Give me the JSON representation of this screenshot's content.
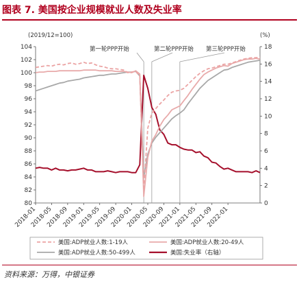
{
  "header": {
    "title": "图表 7. 美国按企业规模就业人数及失业率"
  },
  "footer": {
    "source": "资料来源：万得，中银证券"
  },
  "chart_data": {
    "type": "line",
    "left_axis_label": "(2019/12=100)",
    "right_axis_label": "(%)",
    "left_ylim": [
      80,
      104
    ],
    "left_yticks": [
      80,
      82,
      84,
      86,
      88,
      90,
      92,
      94,
      96,
      98,
      100,
      102,
      104
    ],
    "right_ylim": [
      0,
      18
    ],
    "right_yticks": [
      0,
      2,
      4,
      6,
      8,
      10,
      12,
      14,
      16,
      18
    ],
    "xlim": [
      "2018-01",
      "2022-09"
    ],
    "x_ticks": [
      "2018-01",
      "2018-05",
      "2018-09",
      "2019-01",
      "2019-05",
      "2019-09",
      "2020-01",
      "2020-05",
      "2020-09",
      "2021-01",
      "2021-05",
      "2021-09",
      "2022-01"
    ],
    "grid": false,
    "legend_position": "bottom",
    "annotations": [
      {
        "text": "第一轮PPP开始",
        "x": "2020-04"
      },
      {
        "text": "第二轮PPP开始",
        "x": "2020-06"
      },
      {
        "text": "第三轮PPP开始",
        "x": "2021-01"
      }
    ],
    "x": [
      "2018-01",
      "2018-02",
      "2018-03",
      "2018-04",
      "2018-05",
      "2018-06",
      "2018-07",
      "2018-08",
      "2018-09",
      "2018-10",
      "2018-11",
      "2018-12",
      "2019-01",
      "2019-02",
      "2019-03",
      "2019-04",
      "2019-05",
      "2019-06",
      "2019-07",
      "2019-08",
      "2019-09",
      "2019-10",
      "2019-11",
      "2019-12",
      "2020-01",
      "2020-02",
      "2020-03",
      "2020-04",
      "2020-05",
      "2020-06",
      "2020-07",
      "2020-08",
      "2020-09",
      "2020-10",
      "2020-11",
      "2020-12",
      "2021-01",
      "2021-02",
      "2021-03",
      "2021-04",
      "2021-05",
      "2021-06",
      "2021-07",
      "2021-08",
      "2021-09",
      "2021-10",
      "2021-11",
      "2021-12",
      "2022-01",
      "2022-02",
      "2022-03",
      "2022-04",
      "2022-05",
      "2022-06",
      "2022-07",
      "2022-08",
      "2022-09"
    ],
    "series": [
      {
        "name": "美国:ADP就业人数:1-19人",
        "axis": "left",
        "color": "#eba3a3",
        "style": "dashed",
        "values": [
          100.8,
          100.9,
          101.0,
          101.1,
          101.0,
          101.2,
          101.3,
          101.2,
          101.4,
          101.5,
          101.3,
          101.4,
          101.6,
          101.4,
          101.5,
          101.2,
          101.0,
          100.9,
          100.7,
          100.6,
          100.6,
          100.5,
          100.4,
          100.0,
          100.1,
          100.2,
          99.5,
          82.0,
          91.5,
          93.8,
          94.5,
          95.2,
          95.8,
          96.5,
          97.0,
          97.2,
          97.3,
          97.6,
          98.2,
          98.8,
          99.4,
          99.9,
          100.3,
          100.6,
          100.7,
          100.9,
          101.1,
          101.3,
          101.3,
          101.5,
          101.7,
          101.9,
          102.1,
          102.2,
          102.3,
          102.3,
          102.4
        ]
      },
      {
        "name": "美国:ADP就业人数:20-49人",
        "axis": "left",
        "color": "#e8aaaa",
        "style": "solid",
        "values": [
          100.0,
          100.1,
          100.1,
          100.2,
          100.2,
          100.2,
          100.3,
          100.3,
          100.3,
          100.3,
          100.3,
          100.3,
          100.4,
          100.4,
          100.4,
          100.4,
          100.3,
          100.3,
          100.3,
          100.3,
          100.2,
          100.2,
          100.2,
          100.1,
          100.0,
          100.3,
          99.8,
          81.0,
          87.0,
          89.5,
          90.5,
          91.8,
          92.8,
          93.5,
          94.3,
          94.6,
          94.9,
          95.7,
          96.5,
          97.4,
          98.2,
          99.0,
          99.7,
          100.1,
          100.4,
          100.7,
          100.9,
          101.1,
          101.0,
          101.4,
          101.6,
          101.8,
          102.0,
          102.1,
          102.1,
          102.2,
          102.1
        ]
      },
      {
        "name": "美国:ADP就业人数:50-499人",
        "axis": "left",
        "color": "#a8a8a8",
        "style": "solid",
        "values": [
          97.2,
          97.4,
          97.6,
          97.8,
          98.0,
          98.2,
          98.4,
          98.5,
          98.7,
          98.8,
          98.9,
          99.0,
          99.2,
          99.3,
          99.4,
          99.5,
          99.6,
          99.6,
          99.7,
          99.8,
          99.8,
          99.9,
          100.0,
          100.1,
          100.1,
          100.2,
          99.5,
          84.0,
          87.5,
          89.2,
          90.1,
          90.8,
          91.5,
          92.2,
          92.9,
          93.4,
          93.8,
          94.3,
          95.2,
          96.0,
          96.8,
          97.6,
          98.2,
          98.8,
          99.2,
          99.6,
          100.0,
          100.4,
          100.5,
          100.8,
          101.0,
          101.2,
          101.4,
          101.6,
          101.7,
          101.8,
          101.9
        ]
      },
      {
        "name": "美国:失业率（右轴）",
        "axis": "right",
        "color": "#a50f2b",
        "style": "solid",
        "values": [
          4.0,
          4.1,
          4.0,
          4.0,
          3.8,
          4.0,
          3.8,
          3.8,
          3.7,
          3.8,
          3.8,
          3.9,
          4.0,
          3.8,
          3.8,
          3.6,
          3.6,
          3.6,
          3.7,
          3.6,
          3.5,
          3.6,
          3.6,
          3.6,
          3.5,
          3.5,
          4.4,
          14.7,
          13.2,
          11.0,
          10.2,
          8.4,
          7.9,
          6.9,
          6.7,
          6.7,
          6.4,
          6.2,
          6.1,
          6.1,
          5.8,
          5.9,
          5.4,
          5.2,
          4.7,
          4.6,
          4.2,
          3.9,
          4.0,
          3.8,
          3.6,
          3.6,
          3.6,
          3.6,
          3.5,
          3.7,
          3.5
        ]
      }
    ]
  }
}
